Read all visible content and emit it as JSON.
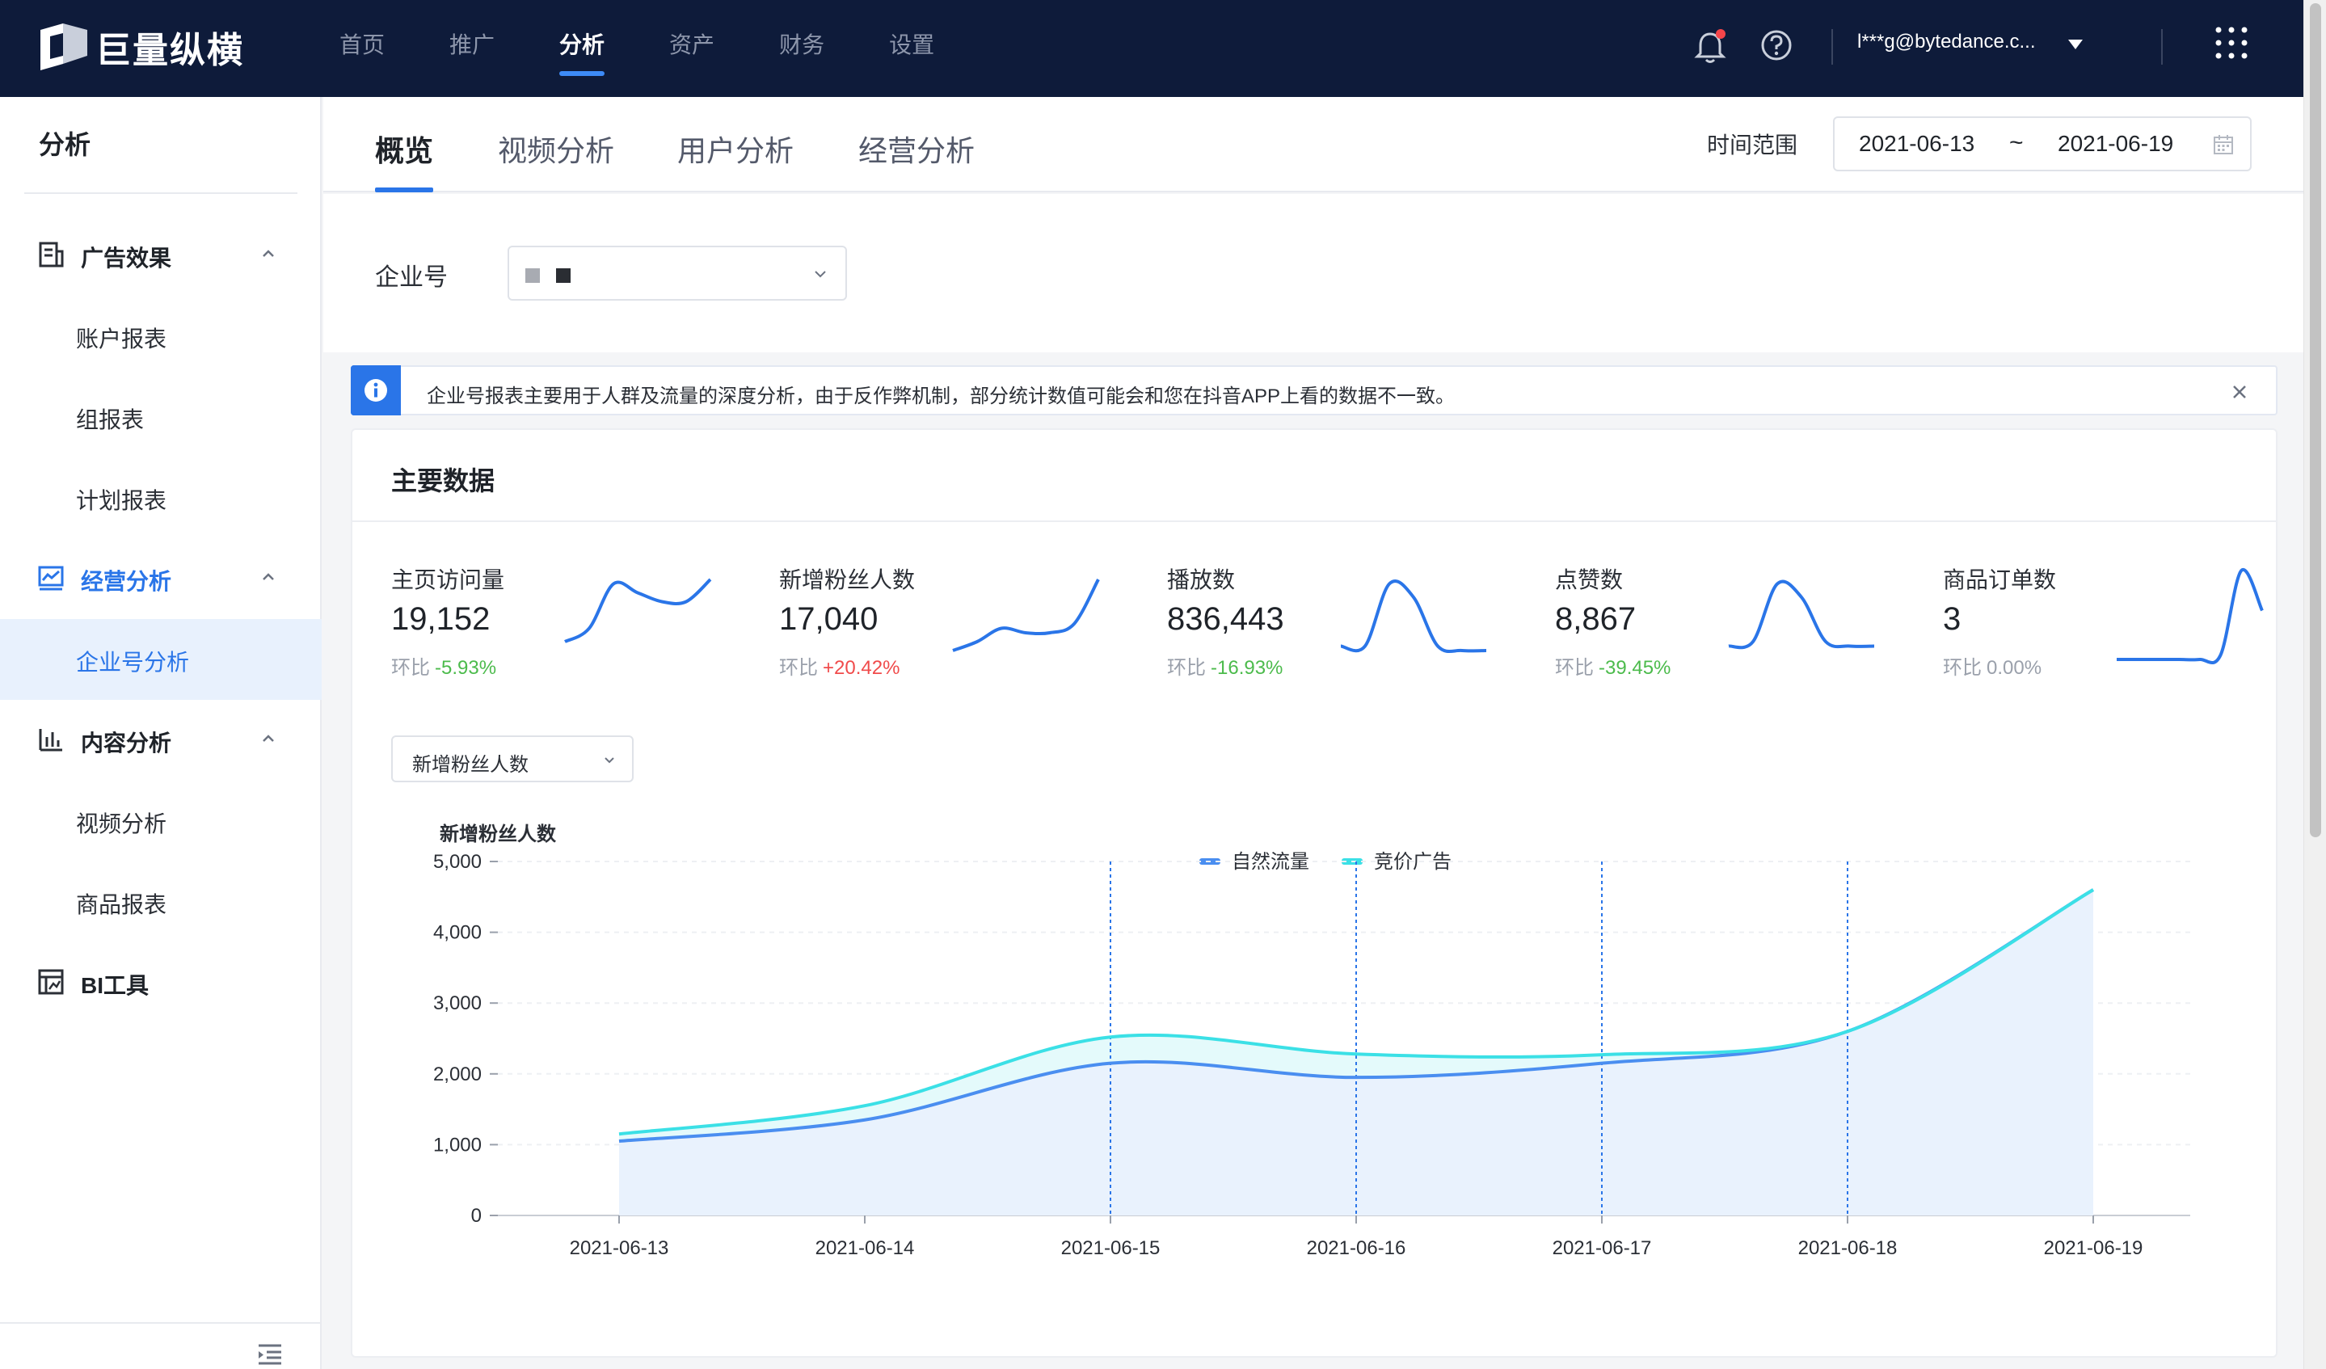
{
  "app": {
    "name": "巨量纵横"
  },
  "nav": {
    "items": [
      "首页",
      "推广",
      "分析",
      "资产",
      "财务",
      "设置"
    ],
    "active": "分析"
  },
  "user": {
    "email": "l***g@bytedance.c..."
  },
  "sidebar": {
    "title": "分析",
    "groups": [
      {
        "label": "广告效果",
        "icon": "report-icon",
        "items": [
          "账户报表",
          "组报表",
          "计划报表"
        ]
      },
      {
        "label": "经营分析",
        "icon": "business-chart-icon",
        "items": [
          "企业号分析"
        ]
      },
      {
        "label": "内容分析",
        "icon": "bar-chart-icon",
        "items": [
          "视频分析",
          "商品报表"
        ]
      },
      {
        "label": "BI工具",
        "icon": "bi-tool-icon",
        "items": []
      }
    ],
    "selected": "企业号分析"
  },
  "tabs": {
    "items": [
      "概览",
      "视频分析",
      "用户分析",
      "经营分析"
    ],
    "active": "概览"
  },
  "date_range": {
    "label": "时间范围",
    "start": "2021-06-13",
    "separator": "~",
    "end": "2021-06-19"
  },
  "account": {
    "label": "企业号"
  },
  "banner": {
    "text": "企业号报表主要用于人群及流量的深度分析，由于反作弊机制，部分统计数值可能会和您在抖音APP上看的数据不一致。"
  },
  "main": {
    "title": "主要数据",
    "metrics": [
      {
        "label": "主页访问量",
        "value": "19,152",
        "compare_label": "环比",
        "compare": "-5.93%",
        "trend": "down",
        "spark": [
          0.2,
          0.35,
          0.85,
          0.75,
          0.65,
          0.65,
          0.9
        ]
      },
      {
        "label": "新增粉丝人数",
        "value": "17,040",
        "compare_label": "环比",
        "compare": "+20.42%",
        "trend": "up",
        "spark": [
          0.1,
          0.2,
          0.35,
          0.3,
          0.3,
          0.4,
          0.9
        ]
      },
      {
        "label": "播放数",
        "value": "836,443",
        "compare_label": "环比",
        "compare": "-16.93%",
        "trend": "down",
        "spark": [
          0.15,
          0.15,
          0.85,
          0.7,
          0.15,
          0.1,
          0.1
        ]
      },
      {
        "label": "点赞数",
        "value": "8,867",
        "compare_label": "环比",
        "compare": "-39.45%",
        "trend": "down",
        "spark": [
          0.15,
          0.2,
          0.85,
          0.7,
          0.2,
          0.15,
          0.15
        ]
      },
      {
        "label": "商品订单数",
        "value": "3",
        "compare_label": "环比",
        "compare": "0.00%",
        "trend": "flat",
        "spark": [
          0,
          0,
          0,
          0,
          0,
          0.05,
          1.0,
          0.55
        ]
      }
    ],
    "metric_select": "新增粉丝人数"
  },
  "chart_data": {
    "type": "area",
    "title": "新增粉丝人数",
    "x": [
      "2021-06-13",
      "2021-06-14",
      "2021-06-15",
      "2021-06-16",
      "2021-06-17",
      "2021-06-18",
      "2021-06-19"
    ],
    "series": [
      {
        "name": "自然流量",
        "color": "#4a8ef0",
        "values": [
          1050,
          1350,
          2150,
          1950,
          2150,
          2600,
          4600
        ]
      },
      {
        "name": "竞价广告",
        "color": "#3be0e6",
        "values": [
          1150,
          1550,
          2520,
          2280,
          2270,
          2600,
          4600
        ]
      }
    ],
    "ylim": [
      0,
      5000
    ],
    "yticks": [
      0,
      1000,
      2000,
      3000,
      4000,
      5000
    ],
    "ytick_labels": [
      "0",
      "1,000",
      "2,000",
      "3,000",
      "4,000",
      "5,000"
    ],
    "grid": true,
    "legend": "top-center",
    "vlines": [
      "2021-06-15",
      "2021-06-16",
      "2021-06-17",
      "2021-06-18"
    ]
  }
}
